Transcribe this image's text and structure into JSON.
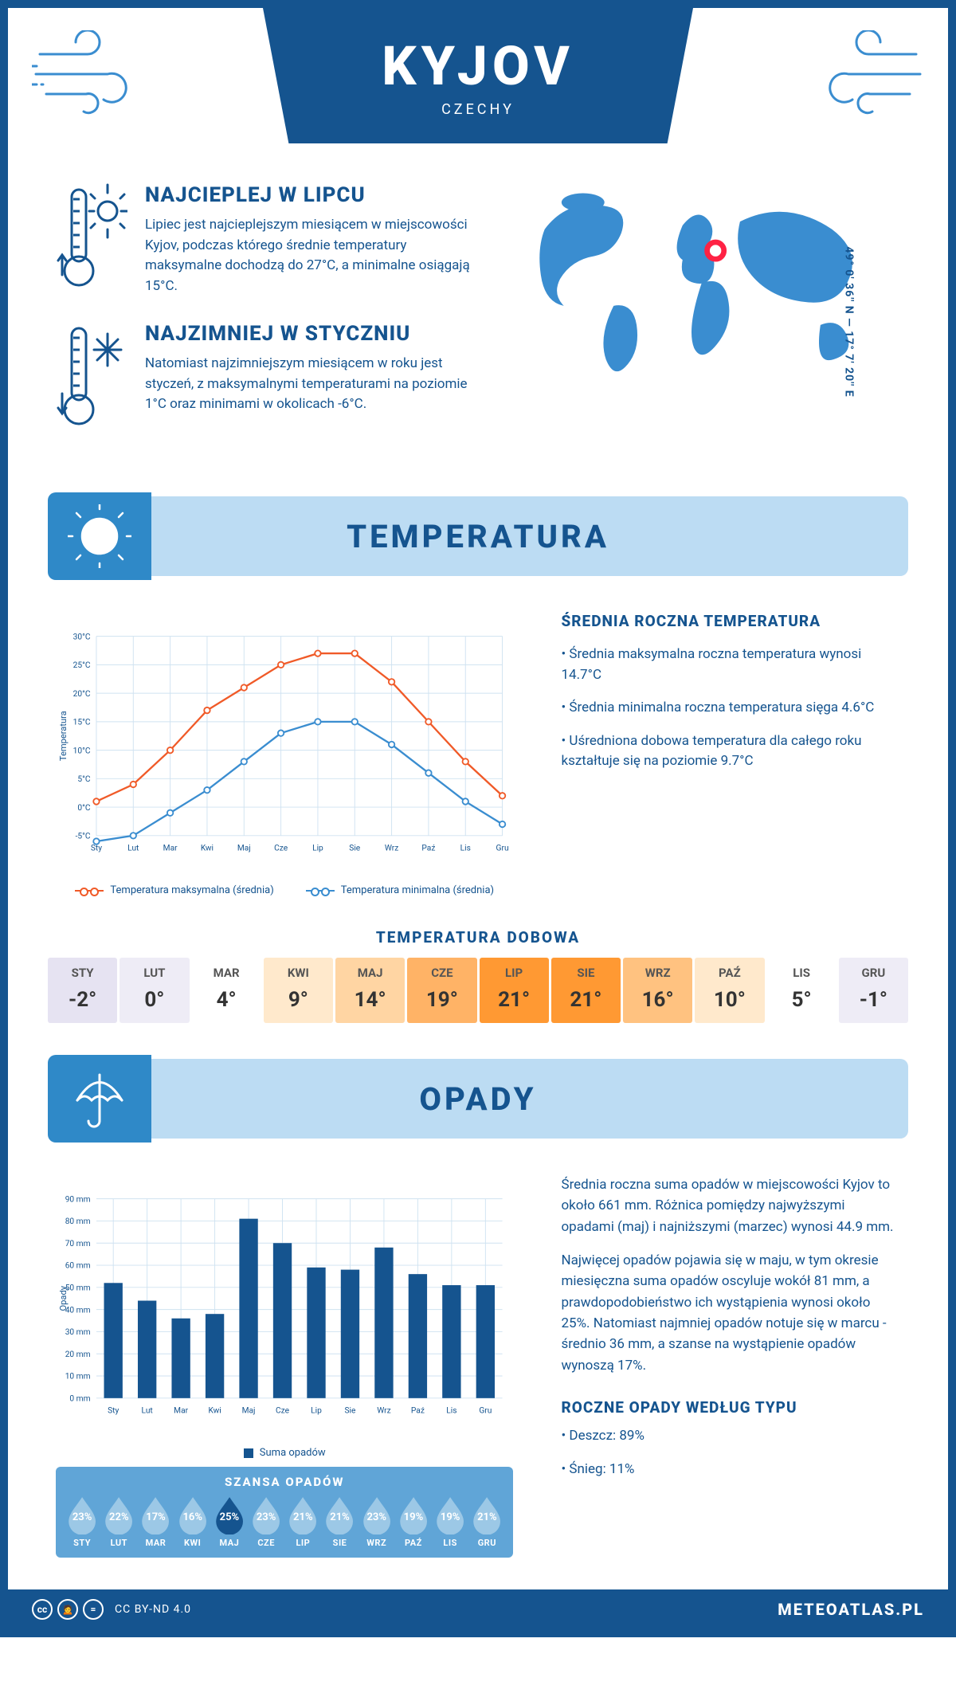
{
  "header": {
    "city": "KYJOV",
    "country": "CZECHY"
  },
  "coords": "49° 0' 36'' N — 17° 7' 20'' E",
  "intro": {
    "hot": {
      "title": "NAJCIEPLEJ W LIPCU",
      "text": "Lipiec jest najcieplejszym miesiącem w miejscowości Kyjov, podczas którego średnie temperatury maksymalne dochodzą do 27°C, a minimalne osiągają 15°C."
    },
    "cold": {
      "title": "NAJZIMNIEJ W STYCZNIU",
      "text": "Natomiast najzimniejszym miesiącem w roku jest styczeń, z maksymalnymi temperaturami na poziomie 1°C oraz minimami w okolicach -6°C."
    }
  },
  "sections": {
    "temp_title": "TEMPERATURA",
    "precip_title": "OPADY"
  },
  "months": [
    "Sty",
    "Lut",
    "Mar",
    "Kwi",
    "Maj",
    "Cze",
    "Lip",
    "Sie",
    "Wrz",
    "Paź",
    "Lis",
    "Gru"
  ],
  "months_upper": [
    "STY",
    "LUT",
    "MAR",
    "KWI",
    "MAJ",
    "CZE",
    "LIP",
    "SIE",
    "WRZ",
    "PAŹ",
    "LIS",
    "GRU"
  ],
  "temp_chart": {
    "type": "line",
    "y_label": "Temperatura",
    "ylim": [
      -5,
      30
    ],
    "ytick_step": 5,
    "ytick_suffix": "°C",
    "grid_color": "#cfe2f1",
    "bg": "#ffffff",
    "series": [
      {
        "name": "Temperatura maksymalna (średnia)",
        "color": "#f05a28",
        "values": [
          1,
          4,
          10,
          17,
          21,
          25,
          27,
          27,
          22,
          15,
          8,
          2
        ]
      },
      {
        "name": "Temperatura minimalna (średnia)",
        "color": "#3a8dd0",
        "values": [
          -6,
          -5,
          -1,
          3,
          8,
          13,
          15,
          15,
          11,
          6,
          1,
          -3
        ]
      }
    ],
    "legend": {
      "max": "Temperatura maksymalna (średnia)",
      "min": "Temperatura minimalna (średnia)"
    }
  },
  "temp_side": {
    "title": "ŚREDNIA ROCZNA TEMPERATURA",
    "bullets": [
      "• Średnia maksymalna roczna temperatura wynosi 14.7°C",
      "• Średnia minimalna roczna temperatura sięga 4.6°C",
      "• Uśredniona dobowa temperatura dla całego roku kształtuje się na poziomie 9.7°C"
    ]
  },
  "daily": {
    "title": "TEMPERATURA DOBOWA",
    "values": [
      "-2°",
      "0°",
      "4°",
      "9°",
      "14°",
      "19°",
      "21°",
      "21°",
      "16°",
      "10°",
      "5°",
      "-1°"
    ],
    "bg_colors": [
      "#e6e3f2",
      "#eeecf6",
      "#ffffff",
      "#ffe9cc",
      "#ffd5a3",
      "#ffb366",
      "#ff9933",
      "#ff9933",
      "#ffc280",
      "#ffe9cc",
      "#ffffff",
      "#eeecf6"
    ]
  },
  "precip_chart": {
    "type": "bar",
    "y_label": "Opady",
    "ylim": [
      0,
      90
    ],
    "ytick_step": 10,
    "ytick_suffix": " mm",
    "bar_color": "#15548f",
    "grid_color": "#cfe2f1",
    "values": [
      52,
      44,
      36,
      38,
      81,
      70,
      59,
      58,
      68,
      56,
      51,
      51
    ],
    "legend": "Suma opadów"
  },
  "precip_side": {
    "p1": "Średnia roczna suma opadów w miejscowości Kyjov to około 661 mm. Różnica pomiędzy najwyższymi opadami (maj) i najniższymi (marzec) wynosi 44.9 mm.",
    "p2": "Najwięcej opadów pojawia się w maju, w tym okresie miesięczna suma opadów oscyluje wokół 81 mm, a prawdopodobieństwo ich wystąpienia wynosi około 25%. Natomiast najmniej opadów notuje się w marcu - średnio 36 mm, a szanse na wystąpienie opadów wynoszą 17%.",
    "type_title": "ROCZNE OPADY WEDŁUG TYPU",
    "type_bullets": [
      "• Deszcz: 89%",
      "• Śnieg: 11%"
    ]
  },
  "chance": {
    "title": "SZANSA OPADÓW",
    "values": [
      "23%",
      "22%",
      "17%",
      "16%",
      "25%",
      "23%",
      "21%",
      "21%",
      "23%",
      "19%",
      "19%",
      "21%"
    ],
    "highlight_index": 4,
    "drop_fill": "#9cc8e6",
    "drop_highlight": "#15548f"
  },
  "footer": {
    "license": "CC BY-ND 4.0",
    "site": "METEOATLAS.PL"
  },
  "colors": {
    "brand": "#15548f",
    "accent_light": "#bcdcf3",
    "accent_mid": "#2f89c8"
  }
}
